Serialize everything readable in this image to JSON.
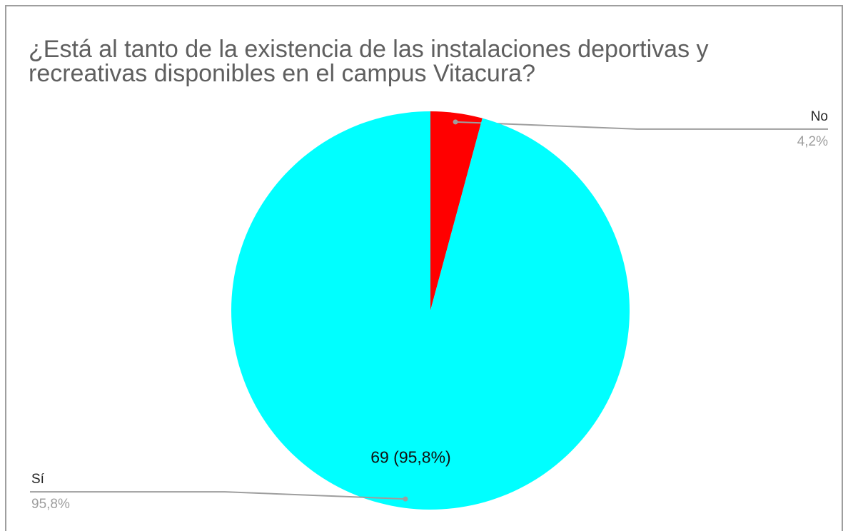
{
  "chart_data": {
    "type": "pie",
    "title": "¿Está al tanto de la existencia de las instalaciones deportivas y recreativas disponibles en el campus Vitacura?",
    "categories": [
      "No",
      "Sí"
    ],
    "values": [
      4.2,
      95.8
    ],
    "value_labels": [
      "4,2%",
      "95,8%"
    ],
    "data_labels": [
      null,
      "69 (95,8%)"
    ],
    "colors": [
      "#ff0000",
      "#00ffff"
    ]
  }
}
